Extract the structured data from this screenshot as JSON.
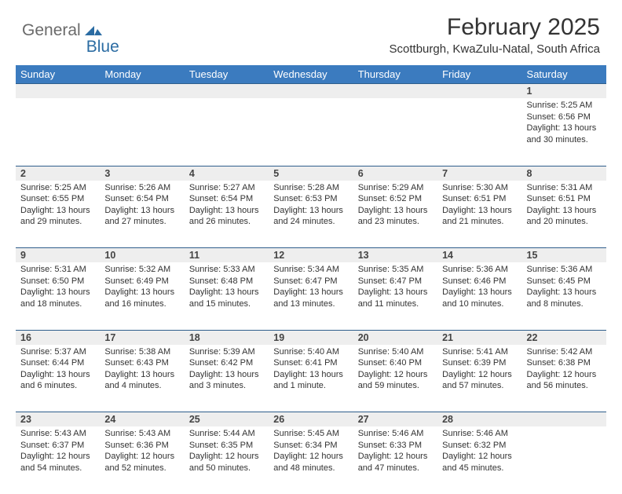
{
  "brand": {
    "general": "General",
    "blue": "Blue"
  },
  "title": "February 2025",
  "location": "Scottburgh, KwaZulu-Natal, South Africa",
  "colors": {
    "header_bg": "#3b7bbf",
    "header_text": "#ffffff",
    "row_divider": "#2f5e8c",
    "daynum_bg": "#eeeeee",
    "text": "#333333",
    "logo_gray": "#6a6a6a",
    "logo_blue": "#2b6ca3",
    "background": "#ffffff"
  },
  "weekdays": [
    "Sunday",
    "Monday",
    "Tuesday",
    "Wednesday",
    "Thursday",
    "Friday",
    "Saturday"
  ],
  "weeks": [
    [
      null,
      null,
      null,
      null,
      null,
      null,
      {
        "n": "1",
        "sunrise": "5:25 AM",
        "sunset": "6:56 PM",
        "daylight": "13 hours and 30 minutes."
      }
    ],
    [
      {
        "n": "2",
        "sunrise": "5:25 AM",
        "sunset": "6:55 PM",
        "daylight": "13 hours and 29 minutes."
      },
      {
        "n": "3",
        "sunrise": "5:26 AM",
        "sunset": "6:54 PM",
        "daylight": "13 hours and 27 minutes."
      },
      {
        "n": "4",
        "sunrise": "5:27 AM",
        "sunset": "6:54 PM",
        "daylight": "13 hours and 26 minutes."
      },
      {
        "n": "5",
        "sunrise": "5:28 AM",
        "sunset": "6:53 PM",
        "daylight": "13 hours and 24 minutes."
      },
      {
        "n": "6",
        "sunrise": "5:29 AM",
        "sunset": "6:52 PM",
        "daylight": "13 hours and 23 minutes."
      },
      {
        "n": "7",
        "sunrise": "5:30 AM",
        "sunset": "6:51 PM",
        "daylight": "13 hours and 21 minutes."
      },
      {
        "n": "8",
        "sunrise": "5:31 AM",
        "sunset": "6:51 PM",
        "daylight": "13 hours and 20 minutes."
      }
    ],
    [
      {
        "n": "9",
        "sunrise": "5:31 AM",
        "sunset": "6:50 PM",
        "daylight": "13 hours and 18 minutes."
      },
      {
        "n": "10",
        "sunrise": "5:32 AM",
        "sunset": "6:49 PM",
        "daylight": "13 hours and 16 minutes."
      },
      {
        "n": "11",
        "sunrise": "5:33 AM",
        "sunset": "6:48 PM",
        "daylight": "13 hours and 15 minutes."
      },
      {
        "n": "12",
        "sunrise": "5:34 AM",
        "sunset": "6:47 PM",
        "daylight": "13 hours and 13 minutes."
      },
      {
        "n": "13",
        "sunrise": "5:35 AM",
        "sunset": "6:47 PM",
        "daylight": "13 hours and 11 minutes."
      },
      {
        "n": "14",
        "sunrise": "5:36 AM",
        "sunset": "6:46 PM",
        "daylight": "13 hours and 10 minutes."
      },
      {
        "n": "15",
        "sunrise": "5:36 AM",
        "sunset": "6:45 PM",
        "daylight": "13 hours and 8 minutes."
      }
    ],
    [
      {
        "n": "16",
        "sunrise": "5:37 AM",
        "sunset": "6:44 PM",
        "daylight": "13 hours and 6 minutes."
      },
      {
        "n": "17",
        "sunrise": "5:38 AM",
        "sunset": "6:43 PM",
        "daylight": "13 hours and 4 minutes."
      },
      {
        "n": "18",
        "sunrise": "5:39 AM",
        "sunset": "6:42 PM",
        "daylight": "13 hours and 3 minutes."
      },
      {
        "n": "19",
        "sunrise": "5:40 AM",
        "sunset": "6:41 PM",
        "daylight": "13 hours and 1 minute."
      },
      {
        "n": "20",
        "sunrise": "5:40 AM",
        "sunset": "6:40 PM",
        "daylight": "12 hours and 59 minutes."
      },
      {
        "n": "21",
        "sunrise": "5:41 AM",
        "sunset": "6:39 PM",
        "daylight": "12 hours and 57 minutes."
      },
      {
        "n": "22",
        "sunrise": "5:42 AM",
        "sunset": "6:38 PM",
        "daylight": "12 hours and 56 minutes."
      }
    ],
    [
      {
        "n": "23",
        "sunrise": "5:43 AM",
        "sunset": "6:37 PM",
        "daylight": "12 hours and 54 minutes."
      },
      {
        "n": "24",
        "sunrise": "5:43 AM",
        "sunset": "6:36 PM",
        "daylight": "12 hours and 52 minutes."
      },
      {
        "n": "25",
        "sunrise": "5:44 AM",
        "sunset": "6:35 PM",
        "daylight": "12 hours and 50 minutes."
      },
      {
        "n": "26",
        "sunrise": "5:45 AM",
        "sunset": "6:34 PM",
        "daylight": "12 hours and 48 minutes."
      },
      {
        "n": "27",
        "sunrise": "5:46 AM",
        "sunset": "6:33 PM",
        "daylight": "12 hours and 47 minutes."
      },
      {
        "n": "28",
        "sunrise": "5:46 AM",
        "sunset": "6:32 PM",
        "daylight": "12 hours and 45 minutes."
      },
      null
    ]
  ],
  "labels": {
    "sunrise": "Sunrise:",
    "sunset": "Sunset:",
    "daylight": "Daylight:"
  }
}
